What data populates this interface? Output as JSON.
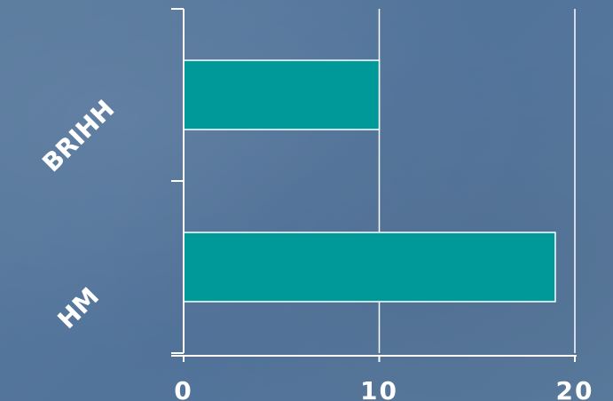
{
  "chart_data": {
    "type": "bar",
    "orientation": "horizontal",
    "categories": [
      "BRIHH",
      "HM"
    ],
    "values": [
      10,
      19
    ],
    "xlim": [
      0,
      20
    ],
    "x_ticks": [
      0,
      10,
      20
    ],
    "tick_labels": [
      "0",
      "10",
      "20"
    ],
    "grid": true,
    "bar_color": "#009999",
    "grid_color": "#ffffff"
  }
}
